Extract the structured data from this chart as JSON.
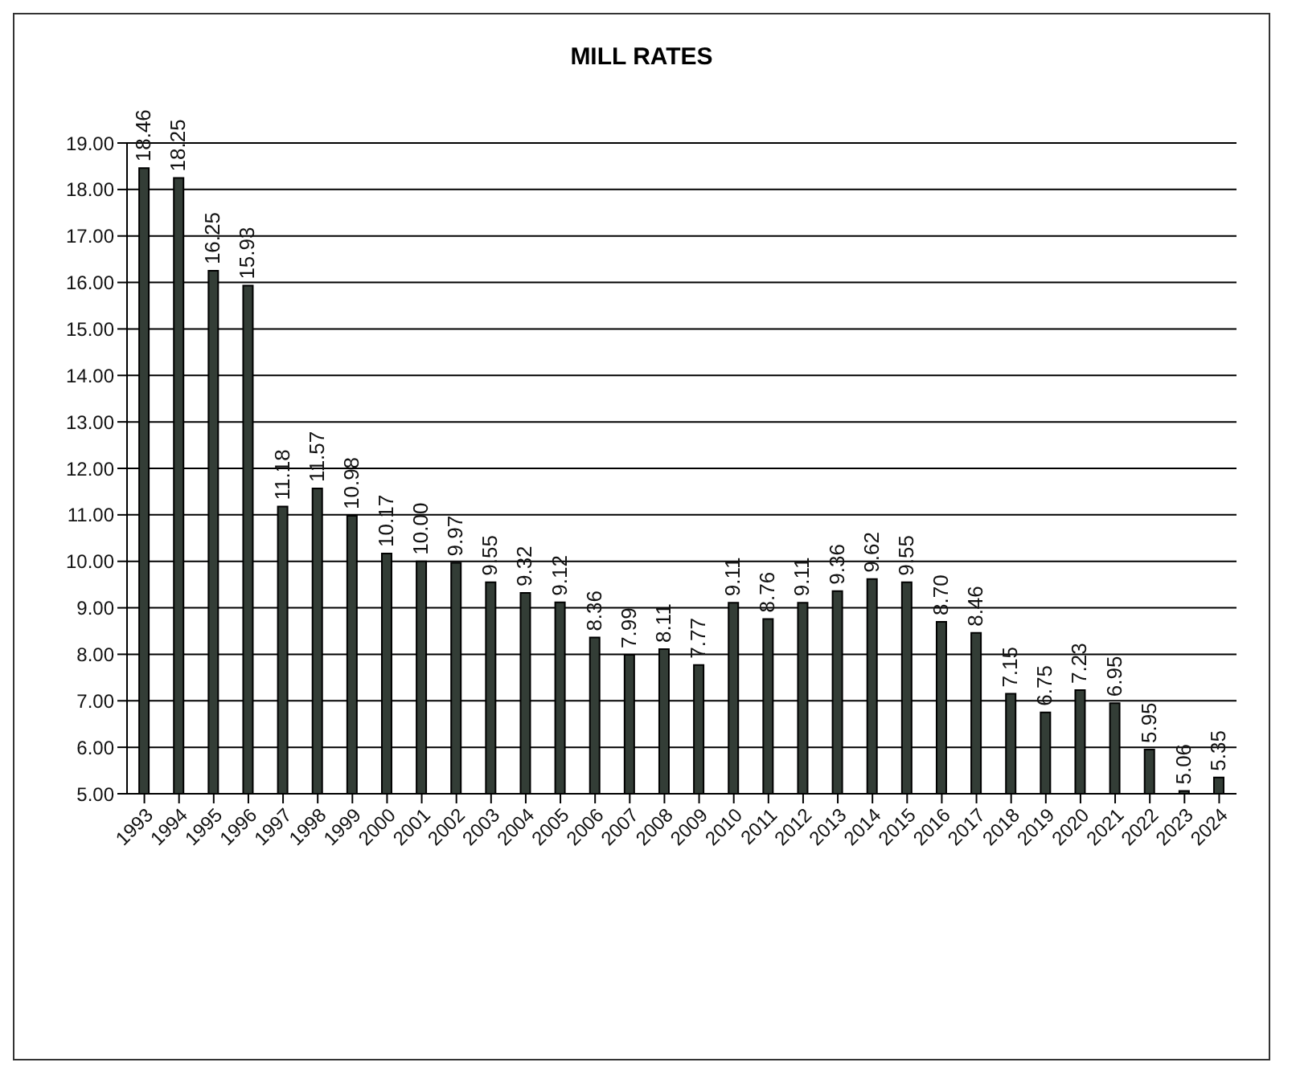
{
  "chart_data": {
    "type": "bar",
    "title": "MILL RATES",
    "categories": [
      "1993",
      "1994",
      "1995",
      "1996",
      "1997",
      "1998",
      "1999",
      "2000",
      "2001",
      "2002",
      "2003",
      "2004",
      "2005",
      "2006",
      "2007",
      "2008",
      "2009",
      "2010",
      "2011",
      "2012",
      "2013",
      "2014",
      "2015",
      "2016",
      "2017",
      "2018",
      "2019",
      "2020",
      "2021",
      "2022",
      "2023",
      "2024"
    ],
    "values": [
      18.46,
      18.25,
      16.25,
      15.93,
      11.18,
      11.57,
      10.98,
      10.17,
      10.0,
      9.97,
      9.55,
      9.32,
      9.12,
      8.36,
      7.99,
      8.11,
      7.77,
      9.11,
      8.76,
      9.11,
      9.36,
      9.62,
      9.55,
      8.7,
      8.46,
      7.15,
      6.75,
      7.23,
      6.95,
      5.95,
      5.06,
      5.35
    ],
    "value_labels": [
      "18.46",
      "18.25",
      "16.25",
      "15.93",
      "11.18",
      "11.57",
      "10.98",
      "10.17",
      "10.00",
      "9.97",
      "9.55",
      "9.32",
      "9.12",
      "8.36",
      "7.99",
      "8.11",
      "7.77",
      "9.11",
      "8.76",
      "9.11",
      "9.36",
      "9.62",
      "9.55",
      "8.70",
      "8.46",
      "7.15",
      "6.75",
      "7.23",
      "6.95",
      "5.95",
      "5.06",
      "5.35"
    ],
    "color": "#333d36",
    "ylim": [
      5,
      19
    ],
    "yticks": [
      {
        "value": 5,
        "label": "5.00"
      },
      {
        "value": 6,
        "label": "6.00"
      },
      {
        "value": 7,
        "label": "7.00"
      },
      {
        "value": 8,
        "label": "8.00"
      },
      {
        "value": 9,
        "label": "9.00"
      },
      {
        "value": 10,
        "label": "10.00"
      },
      {
        "value": 11,
        "label": "11.00"
      },
      {
        "value": 12,
        "label": "12.00"
      },
      {
        "value": 13,
        "label": "13.00"
      },
      {
        "value": 14,
        "label": "14.00"
      },
      {
        "value": 15,
        "label": "15.00"
      },
      {
        "value": 16,
        "label": "16.00"
      },
      {
        "value": 17,
        "label": "17.00"
      },
      {
        "value": 18,
        "label": "18.00"
      },
      {
        "value": 19,
        "label": "19.00"
      }
    ],
    "grid": "y"
  }
}
